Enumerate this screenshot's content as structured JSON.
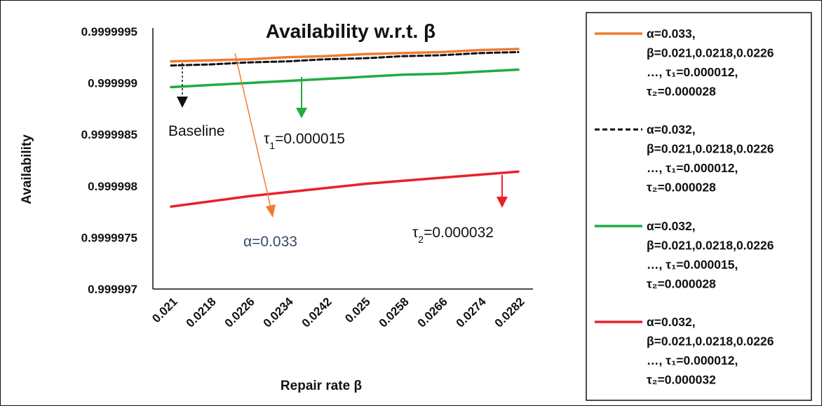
{
  "chart_data": {
    "type": "line",
    "title": "Availability w.r.t. β",
    "xlabel": "Repair rate β",
    "ylabel": "Availability",
    "categories": [
      "0.021",
      "0.0218",
      "0.0226",
      "0.0234",
      "0.0242",
      "0.025",
      "0.0258",
      "0.0266",
      "0.0274",
      "0.0282"
    ],
    "yticks": [
      "0.999997",
      "0.9999975",
      "0.999998",
      "0.9999985",
      "0.999999",
      "0.9999995"
    ],
    "ylim": [
      0.999997,
      0.9999995
    ],
    "grid": false,
    "legend_position": "right",
    "series": [
      {
        "color": "#ED7D31",
        "style": "solid",
        "legend": [
          "α=0.033,",
          "β=0.021,0.0218,0.0226",
          "…, τ₁=0.000012,",
          "τ₂=0.000028"
        ],
        "values": [
          0.99999921,
          0.99999922,
          0.99999923,
          0.99999925,
          0.99999926,
          0.99999928,
          0.99999929,
          0.9999993,
          0.99999932,
          0.99999933
        ]
      },
      {
        "color": "#111111",
        "style": "dashed",
        "legend": [
          "α=0.032,",
          "β=0.021,0.0218,0.0226",
          "…, τ₁=0.000012,",
          "τ₂=0.000028"
        ],
        "values": [
          0.99999917,
          0.99999918,
          0.9999992,
          0.99999921,
          0.99999923,
          0.99999924,
          0.99999926,
          0.99999927,
          0.99999929,
          0.9999993
        ]
      },
      {
        "color": "#22AA44",
        "style": "solid",
        "legend": [
          "α=0.032,",
          "β=0.021,0.0218,0.0226",
          "…, τ₁=0.000015,",
          "τ₂=0.000028"
        ],
        "values": [
          0.99999896,
          0.99999898,
          0.999999,
          0.99999902,
          0.99999904,
          0.99999906,
          0.99999908,
          0.99999909,
          0.99999911,
          0.99999913
        ]
      },
      {
        "color": "#E8202A",
        "style": "solid",
        "legend": [
          "α=0.032,",
          "β=0.021,0.0218,0.0226",
          "…, τ₁=0.000012,",
          "τ₂=0.000032"
        ],
        "values": [
          0.9999978,
          0.99999785,
          0.9999979,
          0.99999794,
          0.99999798,
          0.99999802,
          0.99999805,
          0.99999808,
          0.99999811,
          0.99999814
        ]
      }
    ],
    "annotations": {
      "baseline": "Baseline",
      "tau1": "τ",
      "tau1_sub": "1",
      "tau1_val": "=0.000015",
      "alpha": "α=0.033",
      "tau2": "τ",
      "tau2_sub": "2",
      "tau2_val": "=0.000032"
    }
  }
}
